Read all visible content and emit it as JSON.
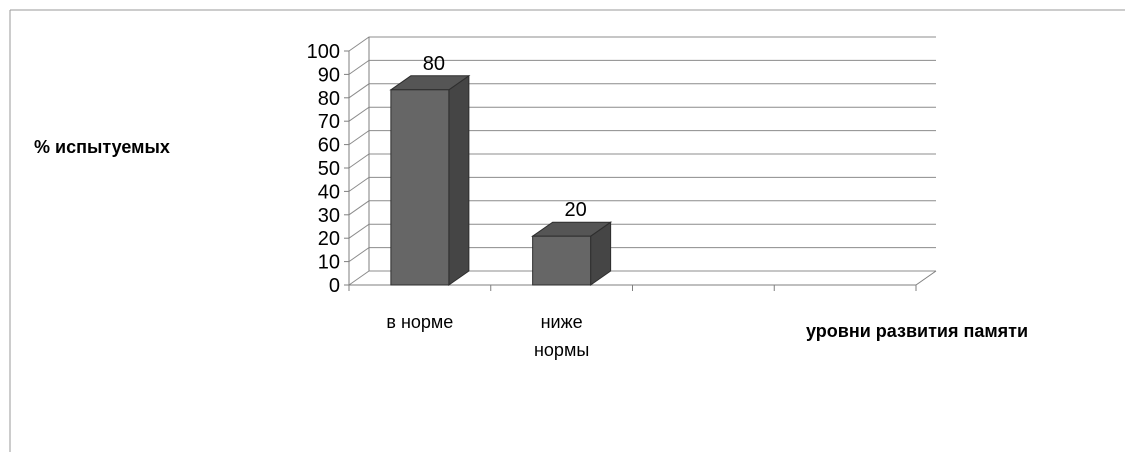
{
  "chart_data": {
    "type": "bar",
    "style": "3d-column",
    "categories": [
      "в норме",
      "ниже нормы",
      "",
      ""
    ],
    "category_lines": [
      [
        "в норме"
      ],
      [
        "ниже",
        "нормы"
      ],
      [],
      []
    ],
    "values": [
      80,
      20,
      null,
      null
    ],
    "data_labels": [
      "80",
      "20",
      "",
      ""
    ],
    "title": "",
    "xlabel": "уровни развития памяти",
    "ylabel": "% испытуемых",
    "ylim": [
      0,
      100
    ],
    "ytick_step": 10,
    "yticks": [
      "0",
      "10",
      "20",
      "30",
      "40",
      "50",
      "60",
      "70",
      "80",
      "90",
      "100"
    ],
    "grid": true,
    "legend": "none",
    "colors": {
      "bar_front": "#666666",
      "bar_side": "#454545",
      "bar_top": "#555555",
      "bar_outline": "#2e2e2e",
      "grid": "#8c8c8c",
      "axis": "#7f7f7f",
      "frame": "#9a9a9a",
      "text": "#000000"
    }
  }
}
